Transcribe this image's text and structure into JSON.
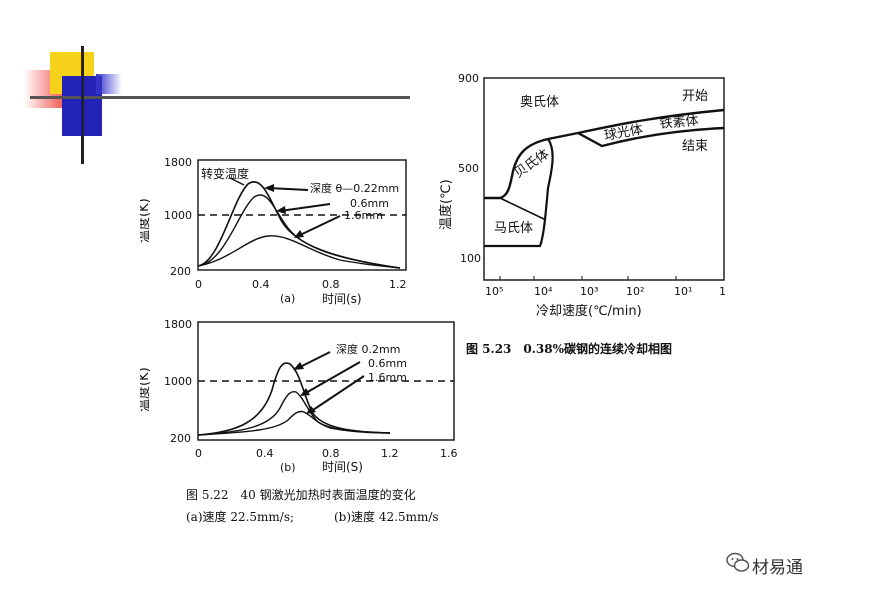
{
  "fig22": {
    "chart_a": {
      "ylabel": "温度(K)",
      "ytick_top": "1800",
      "ytick_mid": "1000",
      "ytick_bottom": "200",
      "xticks": [
        "0",
        "0.4",
        "0.8",
        "1.2"
      ],
      "panel_label": "(a)",
      "xlabel": "时间(s)",
      "transform_label": "转变温度",
      "depth_labels": [
        "深度 θ—0.22mm",
        "0.6mm",
        "1.6mm"
      ]
    },
    "chart_b": {
      "ylabel": "温度(K)",
      "ytick_top": "1800",
      "ytick_mid": "1000",
      "ytick_bottom": "200",
      "xticks": [
        "0",
        "0.4",
        "0.8",
        "1.2",
        "1.6"
      ],
      "panel_label": "(b)",
      "xlabel": "时间(S)",
      "depth_labels": [
        "深度 0.2mm",
        "0.6mm",
        "1.6mm"
      ]
    },
    "caption_title": "图 5.22　40 钢激光加热时表面温度的变化",
    "caption_a": "(a)速度 22.5mm/s;",
    "caption_b": "(b)速度 42.5mm/s"
  },
  "fig23": {
    "ylabel": "温度(℃)",
    "yticks": [
      "900",
      "500",
      "100"
    ],
    "xticks": [
      "10⁵",
      "10⁴",
      "10³",
      "10²",
      "10¹",
      "1"
    ],
    "xlabel": "冷却速度(℃/min)",
    "regions": {
      "austenite": "奥氏体",
      "bainite": "贝氏体",
      "pearlite": "球光体",
      "ferrite": "铁素体",
      "martensite": "马氏体",
      "start": "开始",
      "finish": "结束"
    },
    "caption": "图 5.23　0.38%碳钢的连续冷却相图"
  },
  "watermark": {
    "text": "材易通",
    "icon": "wechat-icon"
  },
  "colors": {
    "deco_yellow": "#f7d21a",
    "deco_red": "#e8202a",
    "deco_blue": "#2323b8",
    "ink": "#111111"
  }
}
